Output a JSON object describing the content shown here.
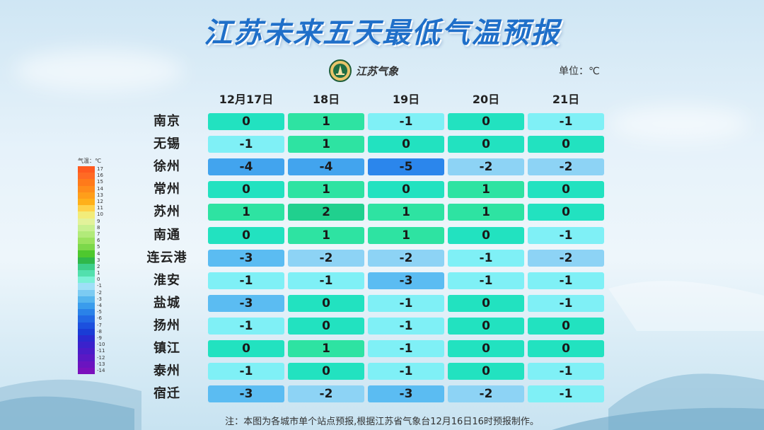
{
  "title": "江苏未来五天最低气温预报",
  "logo_text": "江苏气象",
  "unit_label": "单位：℃",
  "legend": {
    "title": "气温：℃",
    "steps": [
      {
        "label": "17",
        "color": "#ff5a1f"
      },
      {
        "label": "16",
        "color": "#ff6a24"
      },
      {
        "label": "15",
        "color": "#ff7a1a"
      },
      {
        "label": "14",
        "color": "#ff8c1a"
      },
      {
        "label": "13",
        "color": "#ff9e1a"
      },
      {
        "label": "12",
        "color": "#ffb01a"
      },
      {
        "label": "11",
        "color": "#ffd24a"
      },
      {
        "label": "10",
        "color": "#f2ec7a"
      },
      {
        "label": "9",
        "color": "#e2f29a"
      },
      {
        "label": "8",
        "color": "#c8f090"
      },
      {
        "label": "7",
        "color": "#b2ea7a"
      },
      {
        "label": "6",
        "color": "#9ae25e"
      },
      {
        "label": "5",
        "color": "#7cd84a"
      },
      {
        "label": "4",
        "color": "#4ec82e"
      },
      {
        "label": "3",
        "color": "#2fb84a"
      },
      {
        "label": "2",
        "color": "#3dcf8a"
      },
      {
        "label": "1",
        "color": "#52e0ad"
      },
      {
        "label": "0",
        "color": "#7af0d6"
      },
      {
        "label": "-1",
        "color": "#9ee0f7"
      },
      {
        "label": "-2",
        "color": "#7ccbf2"
      },
      {
        "label": "-3",
        "color": "#56b5ee"
      },
      {
        "label": "-4",
        "color": "#3a9cec"
      },
      {
        "label": "-5",
        "color": "#2a82e8"
      },
      {
        "label": "-6",
        "color": "#2268e4"
      },
      {
        "label": "-7",
        "color": "#1c50de"
      },
      {
        "label": "-8",
        "color": "#1a3cd6"
      },
      {
        "label": "-9",
        "color": "#2a2ad0"
      },
      {
        "label": "-10",
        "color": "#3a22cc"
      },
      {
        "label": "-11",
        "color": "#4a1cc8"
      },
      {
        "label": "-12",
        "color": "#5a18c4"
      },
      {
        "label": "-13",
        "color": "#6a14c0"
      },
      {
        "label": "-14",
        "color": "#7a10bc"
      }
    ]
  },
  "chart_data": {
    "type": "table",
    "title": "江苏未来五天最低气温预报",
    "columns": [
      "12月17日",
      "18日",
      "19日",
      "20日",
      "21日"
    ],
    "rows": [
      {
        "city": "南京",
        "values": [
          0,
          1,
          -1,
          0,
          -1
        ]
      },
      {
        "city": "无锡",
        "values": [
          -1,
          1,
          0,
          0,
          0
        ]
      },
      {
        "city": "徐州",
        "values": [
          -4,
          -4,
          -5,
          -2,
          -2
        ]
      },
      {
        "city": "常州",
        "values": [
          0,
          1,
          0,
          1,
          0
        ]
      },
      {
        "city": "苏州",
        "values": [
          1,
          2,
          1,
          1,
          0
        ]
      },
      {
        "city": "南通",
        "values": [
          0,
          1,
          1,
          0,
          -1
        ]
      },
      {
        "city": "连云港",
        "values": [
          -3,
          -2,
          -2,
          -1,
          -2
        ]
      },
      {
        "city": "淮安",
        "values": [
          -1,
          -1,
          -3,
          -1,
          -1
        ]
      },
      {
        "city": "盐城",
        "values": [
          -3,
          0,
          -1,
          0,
          -1
        ]
      },
      {
        "city": "扬州",
        "values": [
          -1,
          0,
          -1,
          0,
          0
        ]
      },
      {
        "city": "镇江",
        "values": [
          0,
          1,
          -1,
          0,
          0
        ]
      },
      {
        "city": "泰州",
        "values": [
          -1,
          0,
          -1,
          0,
          -1
        ]
      },
      {
        "city": "宿迁",
        "values": [
          -3,
          -2,
          -3,
          -2,
          -1
        ]
      }
    ],
    "value_colors": {
      "2": "#20d08e",
      "1": "#2ee3a2",
      "0": "#22e2c0",
      "-1": "#7ff0f6",
      "-2": "#8dd3f5",
      "-3": "#5bbcf2",
      "-4": "#42a4ee",
      "-5": "#2b86ec"
    }
  },
  "footnote": "注：本图为各城市单个站点预报,根据江苏省气象台12月16日16时预报制作。"
}
